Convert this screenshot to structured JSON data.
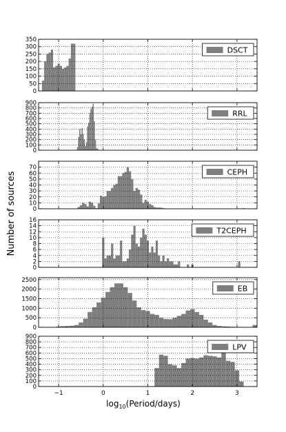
{
  "figure": {
    "ylabel": "Number of sources",
    "xlabel_base": "log",
    "xlabel_sub": "10",
    "xlabel_rest": "(Period/days)",
    "bar_color": "#7f7f7f",
    "grid": true
  },
  "chart_data": [
    {
      "type": "bar",
      "name": "DSCT",
      "legend": "DSCT",
      "legend_position": "top-right",
      "xlim": [
        -1.45,
        3.45
      ],
      "ylim": [
        0,
        350
      ],
      "yticks": [
        "0",
        "50",
        "100",
        "150",
        "200",
        "250",
        "300",
        "350"
      ],
      "bin_width": 0.05,
      "x": [
        -1.35,
        -1.3,
        -1.25,
        -1.2,
        -1.15,
        -1.1,
        -1.05,
        -1.0,
        -0.95,
        -0.9,
        -0.85,
        -0.8,
        -0.75,
        -0.7,
        -0.65
      ],
      "values": [
        70,
        200,
        250,
        260,
        280,
        160,
        170,
        185,
        170,
        150,
        160,
        170,
        220,
        320,
        320
      ]
    },
    {
      "type": "bar",
      "name": "RRL",
      "legend": "RRL",
      "legend_position": "top-right",
      "xlim": [
        -1.45,
        3.45
      ],
      "ylim": [
        0,
        900
      ],
      "yticks": [
        "0",
        "100",
        "200",
        "300",
        "400",
        "500",
        "600",
        "700",
        "800",
        "900"
      ],
      "bin_width": 0.025,
      "x": [
        -0.6,
        -0.575,
        -0.55,
        -0.525,
        -0.5,
        -0.475,
        -0.45,
        -0.425,
        -0.4,
        -0.375,
        -0.35,
        -0.325,
        -0.3,
        -0.275,
        -0.25,
        -0.225,
        -0.2,
        -0.175,
        -0.15,
        -0.125,
        -0.1,
        -0.075
      ],
      "values": [
        10,
        60,
        250,
        400,
        300,
        420,
        310,
        200,
        80,
        150,
        450,
        520,
        700,
        780,
        820,
        880,
        550,
        200,
        40,
        30,
        10,
        5
      ]
    },
    {
      "type": "bar",
      "name": "CEPH",
      "legend": "CEPH",
      "legend_position": "top-right",
      "xlim": [
        -1.45,
        3.45
      ],
      "ylim": [
        0,
        80
      ],
      "yticks": [
        "0",
        "10",
        "20",
        "30",
        "40",
        "50",
        "60",
        "70"
      ],
      "bin_width": 0.05,
      "x": [
        -0.55,
        -0.5,
        -0.45,
        -0.4,
        -0.35,
        -0.3,
        -0.25,
        -0.2,
        -0.15,
        -0.1,
        -0.05,
        0.0,
        0.05,
        0.1,
        0.15,
        0.2,
        0.25,
        0.3,
        0.35,
        0.4,
        0.45,
        0.5,
        0.55,
        0.6,
        0.65,
        0.7,
        0.75,
        0.8,
        0.85,
        0.9,
        0.95,
        1.0,
        1.05,
        1.1,
        1.15,
        1.2,
        1.25,
        1.3,
        1.35,
        3.15
      ],
      "values": [
        3,
        6,
        10,
        8,
        4,
        12,
        10,
        5,
        1,
        9,
        22,
        20,
        21,
        30,
        30,
        35,
        40,
        42,
        55,
        55,
        60,
        62,
        70,
        63,
        50,
        30,
        35,
        32,
        24,
        10,
        15,
        12,
        8,
        6,
        3,
        2,
        2,
        2,
        1,
        1
      ]
    },
    {
      "type": "bar",
      "name": "T2CEPH",
      "legend": "T2CEPH",
      "legend_position": "top-right",
      "xlim": [
        -1.45,
        3.45
      ],
      "ylim": [
        0,
        16
      ],
      "yticks": [
        "0",
        "2",
        "4",
        "6",
        "8",
        "10",
        "12",
        "14",
        "16"
      ],
      "bin_width": 0.05,
      "x": [
        0.0,
        0.05,
        0.1,
        0.15,
        0.2,
        0.25,
        0.3,
        0.35,
        0.4,
        0.45,
        0.5,
        0.55,
        0.6,
        0.65,
        0.7,
        0.75,
        0.8,
        0.85,
        0.9,
        0.95,
        1.0,
        1.05,
        1.1,
        1.15,
        1.2,
        1.25,
        1.3,
        1.35,
        1.4,
        1.45,
        1.5,
        1.55,
        1.6,
        1.65,
        1.7,
        1.75,
        1.8,
        1.85,
        1.9,
        1.95,
        2.0,
        3.05
      ],
      "values": [
        10,
        3,
        4,
        4,
        8,
        3,
        4,
        4,
        9,
        2,
        2,
        3,
        6,
        11,
        14,
        8,
        7,
        10,
        13,
        11,
        9,
        5,
        7,
        5,
        9,
        4,
        2,
        4,
        2,
        3,
        2,
        2,
        1,
        1,
        2,
        0,
        0,
        0,
        1,
        0,
        1,
        2
      ]
    },
    {
      "type": "bar",
      "name": "EB",
      "legend": "EB",
      "legend_position": "top-right",
      "xlim": [
        -1.45,
        3.45
      ],
      "ylim": [
        0,
        2600
      ],
      "yticks": [
        "0",
        "500",
        "1000",
        "1500",
        "2000",
        "2500"
      ],
      "bin_width": 0.1,
      "x": [
        -1.0,
        -0.9,
        -0.8,
        -0.7,
        -0.6,
        -0.5,
        -0.4,
        -0.3,
        -0.2,
        -0.1,
        0.0,
        0.1,
        0.2,
        0.3,
        0.4,
        0.5,
        0.6,
        0.7,
        0.8,
        0.9,
        1.0,
        1.1,
        1.2,
        1.3,
        1.4,
        1.5,
        1.6,
        1.7,
        1.8,
        1.9,
        2.0,
        2.1,
        2.2,
        2.3,
        2.4,
        2.5,
        2.6,
        2.7,
        2.8,
        2.9,
        3.0,
        3.1,
        3.4
      ],
      "values": [
        40,
        60,
        70,
        80,
        120,
        250,
        450,
        800,
        1050,
        1300,
        1550,
        1850,
        2100,
        2300,
        2300,
        2100,
        1800,
        1400,
        1050,
        900,
        850,
        700,
        650,
        500,
        430,
        420,
        500,
        600,
        700,
        880,
        950,
        800,
        650,
        400,
        250,
        120,
        70,
        50,
        40,
        30,
        20,
        10,
        120
      ]
    },
    {
      "type": "bar",
      "name": "LPV",
      "legend": "LPV",
      "legend_position": "top-right",
      "xlim": [
        -1.45,
        3.45
      ],
      "ylim": [
        0,
        900
      ],
      "yticks": [
        "0",
        "100",
        "200",
        "300",
        "400",
        "500",
        "600",
        "700",
        "800",
        "900"
      ],
      "bin_width": 0.1,
      "x": [
        1.2,
        1.3,
        1.4,
        1.5,
        1.6,
        1.7,
        1.8,
        1.9,
        2.0,
        2.1,
        2.2,
        2.3,
        2.4,
        2.5,
        2.6,
        2.7,
        2.8,
        2.9,
        3.0,
        3.1
      ],
      "values": [
        330,
        570,
        550,
        400,
        380,
        330,
        420,
        500,
        510,
        500,
        520,
        560,
        550,
        540,
        520,
        620,
        460,
        440,
        290,
        90
      ]
    }
  ],
  "x_ticks": [
    {
      "value": -1,
      "label": "−1"
    },
    {
      "value": 0,
      "label": "0"
    },
    {
      "value": 1,
      "label": "1"
    },
    {
      "value": 2,
      "label": "2"
    },
    {
      "value": 3,
      "label": "3"
    }
  ]
}
